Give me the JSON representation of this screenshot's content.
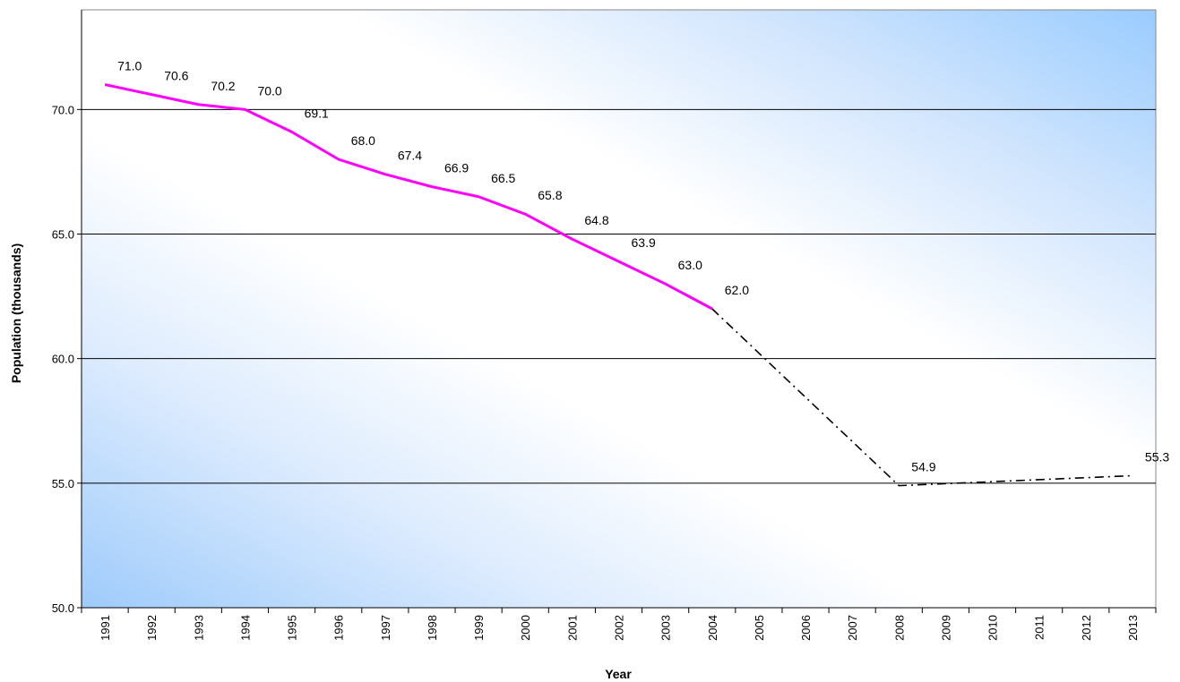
{
  "chart_data": {
    "type": "line",
    "title": "",
    "xlabel": "Year",
    "ylabel": "Population (thousands)",
    "ylim": [
      50,
      74
    ],
    "yticks": [
      "50.0",
      "55.0",
      "60.0",
      "65.0",
      "70.0"
    ],
    "categories": [
      "1991",
      "1992",
      "1993",
      "1994",
      "1995",
      "1996",
      "1997",
      "1998",
      "1999",
      "2000",
      "2001",
      "2002",
      "2003",
      "2004",
      "2005",
      "2006",
      "2007",
      "2008",
      "2009",
      "2010",
      "2011",
      "2012",
      "2013"
    ],
    "grid": "horizontal",
    "legend": "none",
    "series": [
      {
        "style": "solid",
        "color": "#ff00ff",
        "x": [
          "1991",
          "1992",
          "1993",
          "1994",
          "1995",
          "1996",
          "1997",
          "1998",
          "1999",
          "2000",
          "2001",
          "2002",
          "2003",
          "2004"
        ],
        "values": [
          71.0,
          70.6,
          70.2,
          70.0,
          69.1,
          68.0,
          67.4,
          66.9,
          66.5,
          65.8,
          64.8,
          63.9,
          63.0,
          62.0
        ],
        "labels": [
          "71.0",
          "70.6",
          "70.2",
          "70.0",
          "69.1",
          "68.0",
          "67.4",
          "66.9",
          "66.5",
          "65.8",
          "64.8",
          "63.9",
          "63.0",
          "62.0"
        ]
      },
      {
        "style": "dash-dot",
        "color": "#000000",
        "x": [
          "2004",
          "2008",
          "2013"
        ],
        "values": [
          62.0,
          54.9,
          55.3
        ],
        "labels": [
          "",
          "54.9",
          "55.3"
        ]
      }
    ],
    "colors": {
      "background_light": "#ffffff",
      "background_blue": "#99ccff",
      "gridline": "#000000"
    }
  }
}
